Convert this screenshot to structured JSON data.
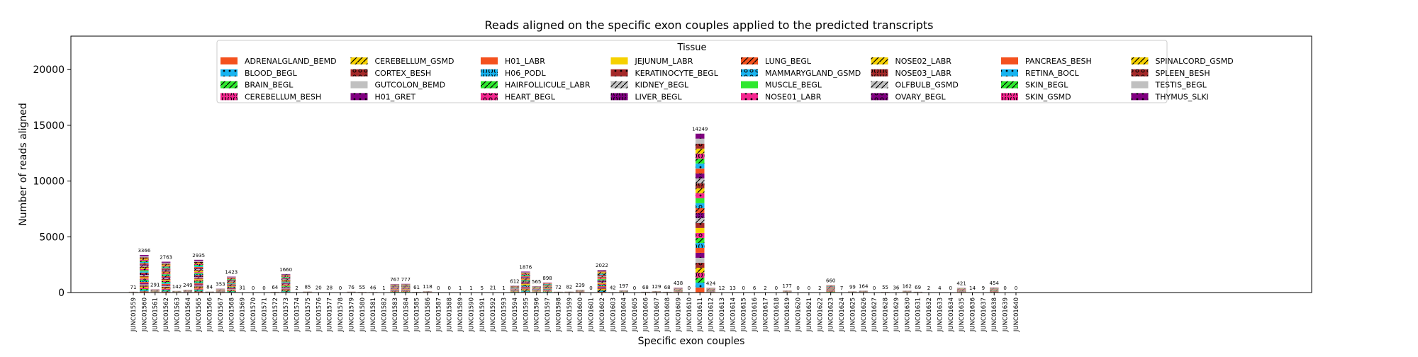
{
  "chart_data": {
    "type": "bar",
    "stacked": true,
    "title": "Reads aligned on the specific exon couples applied to the predicted transcripts",
    "xlabel": "Specific exon couples",
    "ylabel": "Number of reads aligned",
    "ylim": [
      0,
      23000
    ],
    "yticks": [
      0,
      5000,
      10000,
      15000,
      20000
    ],
    "legend": {
      "title": "Tissue",
      "placement": "top-center",
      "columns": 8
    },
    "categories": [
      "JUNC01559",
      "JUNC01560",
      "JUNC01561",
      "JUNC01562",
      "JUNC01563",
      "JUNC01564",
      "JUNC01565",
      "JUNC01566",
      "JUNC01567",
      "JUNC01568",
      "JUNC01569",
      "JUNC01570",
      "JUNC01571",
      "JUNC01572",
      "JUNC01573",
      "JUNC01574",
      "JUNC01575",
      "JUNC01576",
      "JUNC01577",
      "JUNC01578",
      "JUNC01579",
      "JUNC01580",
      "JUNC01581",
      "JUNC01582",
      "JUNC01583",
      "JUNC01584",
      "JUNC01585",
      "JUNC01586",
      "JUNC01587",
      "JUNC01588",
      "JUNC01589",
      "JUNC01590",
      "JUNC01591",
      "JUNC01592",
      "JUNC01593",
      "JUNC01594",
      "JUNC01595",
      "JUNC01596",
      "JUNC01597",
      "JUNC01598",
      "JUNC01599",
      "JUNC01600",
      "JUNC01601",
      "JUNC01602",
      "JUNC01603",
      "JUNC01604",
      "JUNC01605",
      "JUNC01606",
      "JUNC01607",
      "JUNC01608",
      "JUNC01609",
      "JUNC01610",
      "JUNC01611",
      "JUNC01612",
      "JUNC01613",
      "JUNC01614",
      "JUNC01615",
      "JUNC01616",
      "JUNC01617",
      "JUNC01618",
      "JUNC01619",
      "JUNC01620",
      "JUNC01621",
      "JUNC01622",
      "JUNC01623",
      "JUNC01624",
      "JUNC01625",
      "JUNC01626",
      "JUNC01627",
      "JUNC01628",
      "JUNC01629",
      "JUNC01630",
      "JUNC01631",
      "JUNC01632",
      "JUNC01633",
      "JUNC01634",
      "JUNC01635",
      "JUNC01636",
      "JUNC01637",
      "JUNC01638",
      "JUNC01639",
      "JUNC01640"
    ],
    "totals": [
      71,
      3366,
      291,
      2763,
      142,
      249,
      2935,
      84,
      353,
      1423,
      31,
      0,
      0,
      64,
      1660,
      2,
      85,
      20,
      28,
      0,
      76,
      55,
      46,
      1,
      767,
      777,
      61,
      118,
      0,
      0,
      1,
      1,
      5,
      21,
      1,
      612,
      1876,
      565,
      898,
      72,
      82,
      239,
      0,
      2022,
      42,
      197,
      0,
      68,
      129,
      68,
      438,
      0,
      14249,
      424,
      12,
      13,
      0,
      6,
      2,
      0,
      177,
      0,
      0,
      2,
      660,
      7,
      99,
      164,
      0,
      55,
      36,
      162,
      69,
      2,
      4,
      0,
      421,
      14,
      9,
      454,
      0,
      0
    ],
    "series": [
      {
        "name": "ADRENALGLAND_BEMD",
        "color": "#f4511e",
        "hatch": "none"
      },
      {
        "name": "BLOOD_BEGL",
        "color": "#18b4f0",
        "hatch": "dot"
      },
      {
        "name": "BRAIN_BEGL",
        "color": "#2ee82e",
        "hatch": "slash"
      },
      {
        "name": "CEREBELLUM_BESH",
        "color": "#f4268f",
        "hatch": "paren"
      },
      {
        "name": "CEREBELLUM_GSMD",
        "color": "#f6d100",
        "hatch": "slash"
      },
      {
        "name": "CORTEX_BESH",
        "color": "#a52a2a",
        "hatch": "circle"
      },
      {
        "name": "GUTCOLON_BEMD",
        "color": "#c0c0c0",
        "hatch": "none"
      },
      {
        "name": "H01_GRET",
        "color": "#800080",
        "hatch": "dot"
      },
      {
        "name": "H01_LABR",
        "color": "#f4511e",
        "hatch": "none"
      },
      {
        "name": "H06_PODL",
        "color": "#18b4f0",
        "hatch": "paren"
      },
      {
        "name": "HAIRFOLLICULE_LABR",
        "color": "#2ee82e",
        "hatch": "slash"
      },
      {
        "name": "HEART_BEGL",
        "color": "#f4268f",
        "hatch": "circle"
      },
      {
        "name": "JEJUNUM_LABR",
        "color": "#f6d100",
        "hatch": "none"
      },
      {
        "name": "KERATINOCYTE_BEGL",
        "color": "#a52a2a",
        "hatch": "dot"
      },
      {
        "name": "KIDNEY_BEGL",
        "color": "#c0c0c0",
        "hatch": "slash"
      },
      {
        "name": "LIVER_BEGL",
        "color": "#800080",
        "hatch": "paren"
      },
      {
        "name": "LUNG_BEGL",
        "color": "#f4511e",
        "hatch": "slash"
      },
      {
        "name": "MAMMARYGLAND_GSMD",
        "color": "#18b4f0",
        "hatch": "circle"
      },
      {
        "name": "MUSCLE_BEGL",
        "color": "#2ee82e",
        "hatch": "none"
      },
      {
        "name": "NOSE01_LABR",
        "color": "#f4268f",
        "hatch": "dot"
      },
      {
        "name": "NOSE02_LABR",
        "color": "#f6d100",
        "hatch": "slash"
      },
      {
        "name": "NOSE03_LABR",
        "color": "#a52a2a",
        "hatch": "paren"
      },
      {
        "name": "OLFBULB_GSMD",
        "color": "#c0c0c0",
        "hatch": "slash"
      },
      {
        "name": "OVARY_BEGL",
        "color": "#800080",
        "hatch": "circle"
      },
      {
        "name": "PANCREAS_BESH",
        "color": "#f4511e",
        "hatch": "none"
      },
      {
        "name": "RETINA_BOCL",
        "color": "#18b4f0",
        "hatch": "dot"
      },
      {
        "name": "SKIN_BEGL",
        "color": "#2ee82e",
        "hatch": "slash"
      },
      {
        "name": "SKIN_GSMD",
        "color": "#f4268f",
        "hatch": "paren"
      },
      {
        "name": "SPINALCORD_GSMD",
        "color": "#f6d100",
        "hatch": "slash"
      },
      {
        "name": "SPLEEN_BESH",
        "color": "#a52a2a",
        "hatch": "circle"
      },
      {
        "name": "TESTIS_BEGL",
        "color": "#c0c0c0",
        "hatch": "none"
      },
      {
        "name": "THYMUS_SLKI",
        "color": "#800080",
        "hatch": "dot"
      }
    ]
  }
}
